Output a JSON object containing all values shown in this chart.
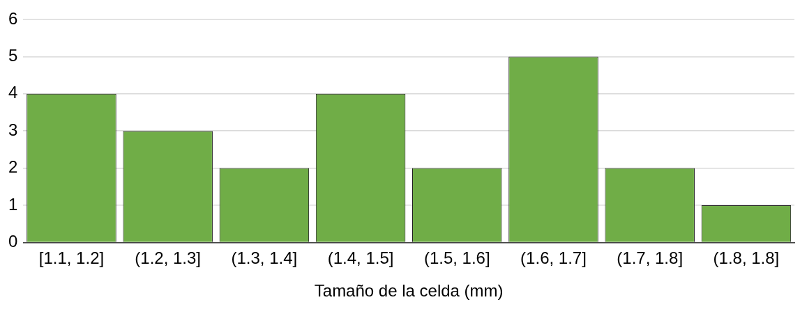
{
  "chart_data": {
    "type": "bar",
    "xlabel": "Tamaño de la celda (mm)",
    "categories": [
      "[1.1, 1.2]",
      "(1.2, 1.3]",
      "(1.3, 1.4]",
      "(1.4, 1.5]",
      "(1.5, 1.6]",
      "(1.6, 1.7]",
      "(1.7, 1.8]",
      "(1.8, 1.8]"
    ],
    "values": [
      4,
      3,
      2,
      4,
      2,
      5,
      2,
      1
    ],
    "color": "#70ad47",
    "ylim": [
      0,
      6
    ],
    "yticks": [
      0,
      1,
      2,
      3,
      4,
      5,
      6
    ],
    "grid": "y"
  }
}
